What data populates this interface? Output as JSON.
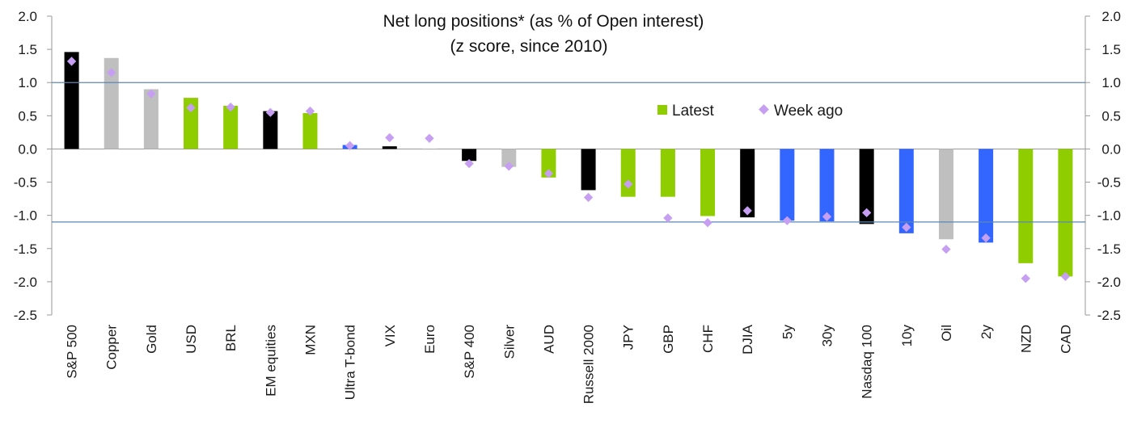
{
  "chart_data": {
    "type": "bar",
    "title": "Net long positions* (as % of Open interest)",
    "subtitle": "(z score, since 2010)",
    "xlabel": "",
    "ylabel": "",
    "ylim": [
      -2.5,
      2.0
    ],
    "yticks": [
      "2.0",
      "1.5",
      "1.0",
      "0.5",
      "0.0",
      "-0.5",
      "-1.0",
      "-1.5",
      "-2.0",
      "-2.5"
    ],
    "ytick_values": [
      2.0,
      1.5,
      1.0,
      0.5,
      0.0,
      -0.5,
      -1.0,
      -1.5,
      -2.0,
      -2.5
    ],
    "reference_lines": [
      1.0,
      -1.1
    ],
    "reference_line_color": "#5b87b8",
    "legend_position": "top-right",
    "grid": false,
    "categories": [
      "S&P 500",
      "Copper",
      "Gold",
      "USD",
      "BRL",
      "EM equities",
      "MXN",
      "Ultra T-bond",
      "VIX",
      "Euro",
      "S&P 400",
      "Silver",
      "AUD",
      "Russell 2000",
      "JPY",
      "GBP",
      "CHF",
      "DJIA",
      "5y",
      "30y",
      "Nasdaq 100",
      "10y",
      "Oil",
      "2y",
      "NZD",
      "CAD"
    ],
    "bar_colors": [
      "#000000",
      "#bfbfbf",
      "#bfbfbf",
      "#8fcc00",
      "#8fcc00",
      "#000000",
      "#8fcc00",
      "#3366ff",
      "#000000",
      "#bfbfbf",
      "#000000",
      "#bfbfbf",
      "#8fcc00",
      "#000000",
      "#8fcc00",
      "#8fcc00",
      "#8fcc00",
      "#000000",
      "#3366ff",
      "#3366ff",
      "#000000",
      "#3366ff",
      "#bfbfbf",
      "#3366ff",
      "#8fcc00",
      "#8fcc00"
    ],
    "series": [
      {
        "name": "Latest",
        "kind": "bar",
        "legend_color": "#8fcc00",
        "values": [
          1.46,
          1.37,
          0.9,
          0.77,
          0.65,
          0.57,
          0.54,
          0.06,
          0.04,
          0.0,
          -0.18,
          -0.27,
          -0.43,
          -0.62,
          -0.72,
          -0.72,
          -1.01,
          -1.03,
          -1.08,
          -1.09,
          -1.13,
          -1.27,
          -1.36,
          -1.41,
          -1.72,
          -1.92
        ]
      },
      {
        "name": "Week ago",
        "kind": "marker",
        "legend_color": "#c79ff2",
        "values": [
          1.32,
          1.15,
          0.83,
          0.62,
          0.63,
          0.55,
          0.57,
          0.05,
          0.17,
          0.16,
          -0.22,
          -0.26,
          -0.37,
          -0.73,
          -0.53,
          -1.04,
          -1.11,
          -0.93,
          -1.08,
          -1.02,
          -0.96,
          -1.18,
          -1.51,
          -1.34,
          -1.95,
          -1.92
        ]
      }
    ]
  }
}
